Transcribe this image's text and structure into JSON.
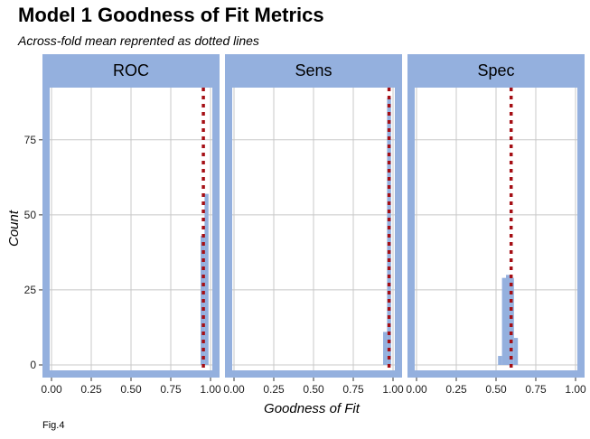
{
  "chart_data": {
    "type": "histogram-facets",
    "title": "Model 1 Goodness of Fit Metrics",
    "subtitle": "Across-fold mean reprented as dotted lines",
    "xlabel": "Goodness of Fit",
    "ylabel": "Count",
    "caption": "Fig.4",
    "xlim": [
      0,
      1
    ],
    "ylim": [
      0,
      93
    ],
    "x_ticks": [
      0,
      0.25,
      0.5,
      0.75,
      1
    ],
    "x_tick_labels": [
      "0.00",
      "0.25",
      "0.50",
      "0.75",
      "1.00"
    ],
    "y_ticks": [
      0,
      25,
      50,
      75
    ],
    "y_tick_labels": [
      "0",
      "25",
      "50",
      "75"
    ],
    "bin_width": 0.025,
    "grid": true,
    "colors": {
      "panel_fill": "#94b0de",
      "panel_background": "#ffffff",
      "grid": "#c8c8c8",
      "bar_fill": "#94b0de",
      "mean_line": "#a50f15"
    },
    "facets": [
      {
        "name": "ROC",
        "bins": [
          {
            "x": 0.95,
            "count": 43
          },
          {
            "x": 0.975,
            "count": 57
          }
        ],
        "mean": 0.955
      },
      {
        "name": "Sens",
        "bins": [
          {
            "x": 0.95,
            "count": 11
          },
          {
            "x": 0.975,
            "count": 89
          }
        ],
        "mean": 0.975
      },
      {
        "name": "Spec",
        "bins": [
          {
            "x": 0.525,
            "count": 3
          },
          {
            "x": 0.55,
            "count": 29
          },
          {
            "x": 0.575,
            "count": 30
          },
          {
            "x": 0.6,
            "count": 29
          },
          {
            "x": 0.625,
            "count": 9
          }
        ],
        "mean": 0.595
      }
    ]
  }
}
